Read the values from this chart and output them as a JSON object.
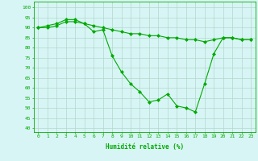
{
  "line1": [
    90,
    91,
    92,
    94,
    94,
    92,
    88,
    89,
    76,
    68,
    62,
    58,
    53,
    54,
    57,
    51,
    50,
    48,
    62,
    77,
    85,
    85,
    84,
    84
  ],
  "line2": [
    90,
    90,
    91,
    93,
    93,
    92,
    91,
    90,
    89,
    88,
    87,
    87,
    86,
    86,
    85,
    85,
    84,
    84,
    83,
    84,
    85,
    85,
    84,
    84
  ],
  "x": [
    0,
    1,
    2,
    3,
    4,
    5,
    6,
    7,
    8,
    9,
    10,
    11,
    12,
    13,
    14,
    15,
    16,
    17,
    18,
    19,
    20,
    21,
    22,
    23
  ],
  "xlabel": "Humidité relative (%)",
  "yticks": [
    40,
    45,
    50,
    55,
    60,
    65,
    70,
    75,
    80,
    85,
    90,
    95,
    100
  ],
  "ylim": [
    38,
    103
  ],
  "xlim": [
    -0.5,
    23.5
  ],
  "line_color": "#00aa00",
  "bg_color": "#d8f5f5",
  "grid_color": "#b0d8cc",
  "markersize": 2.0,
  "linewidth": 0.8
}
